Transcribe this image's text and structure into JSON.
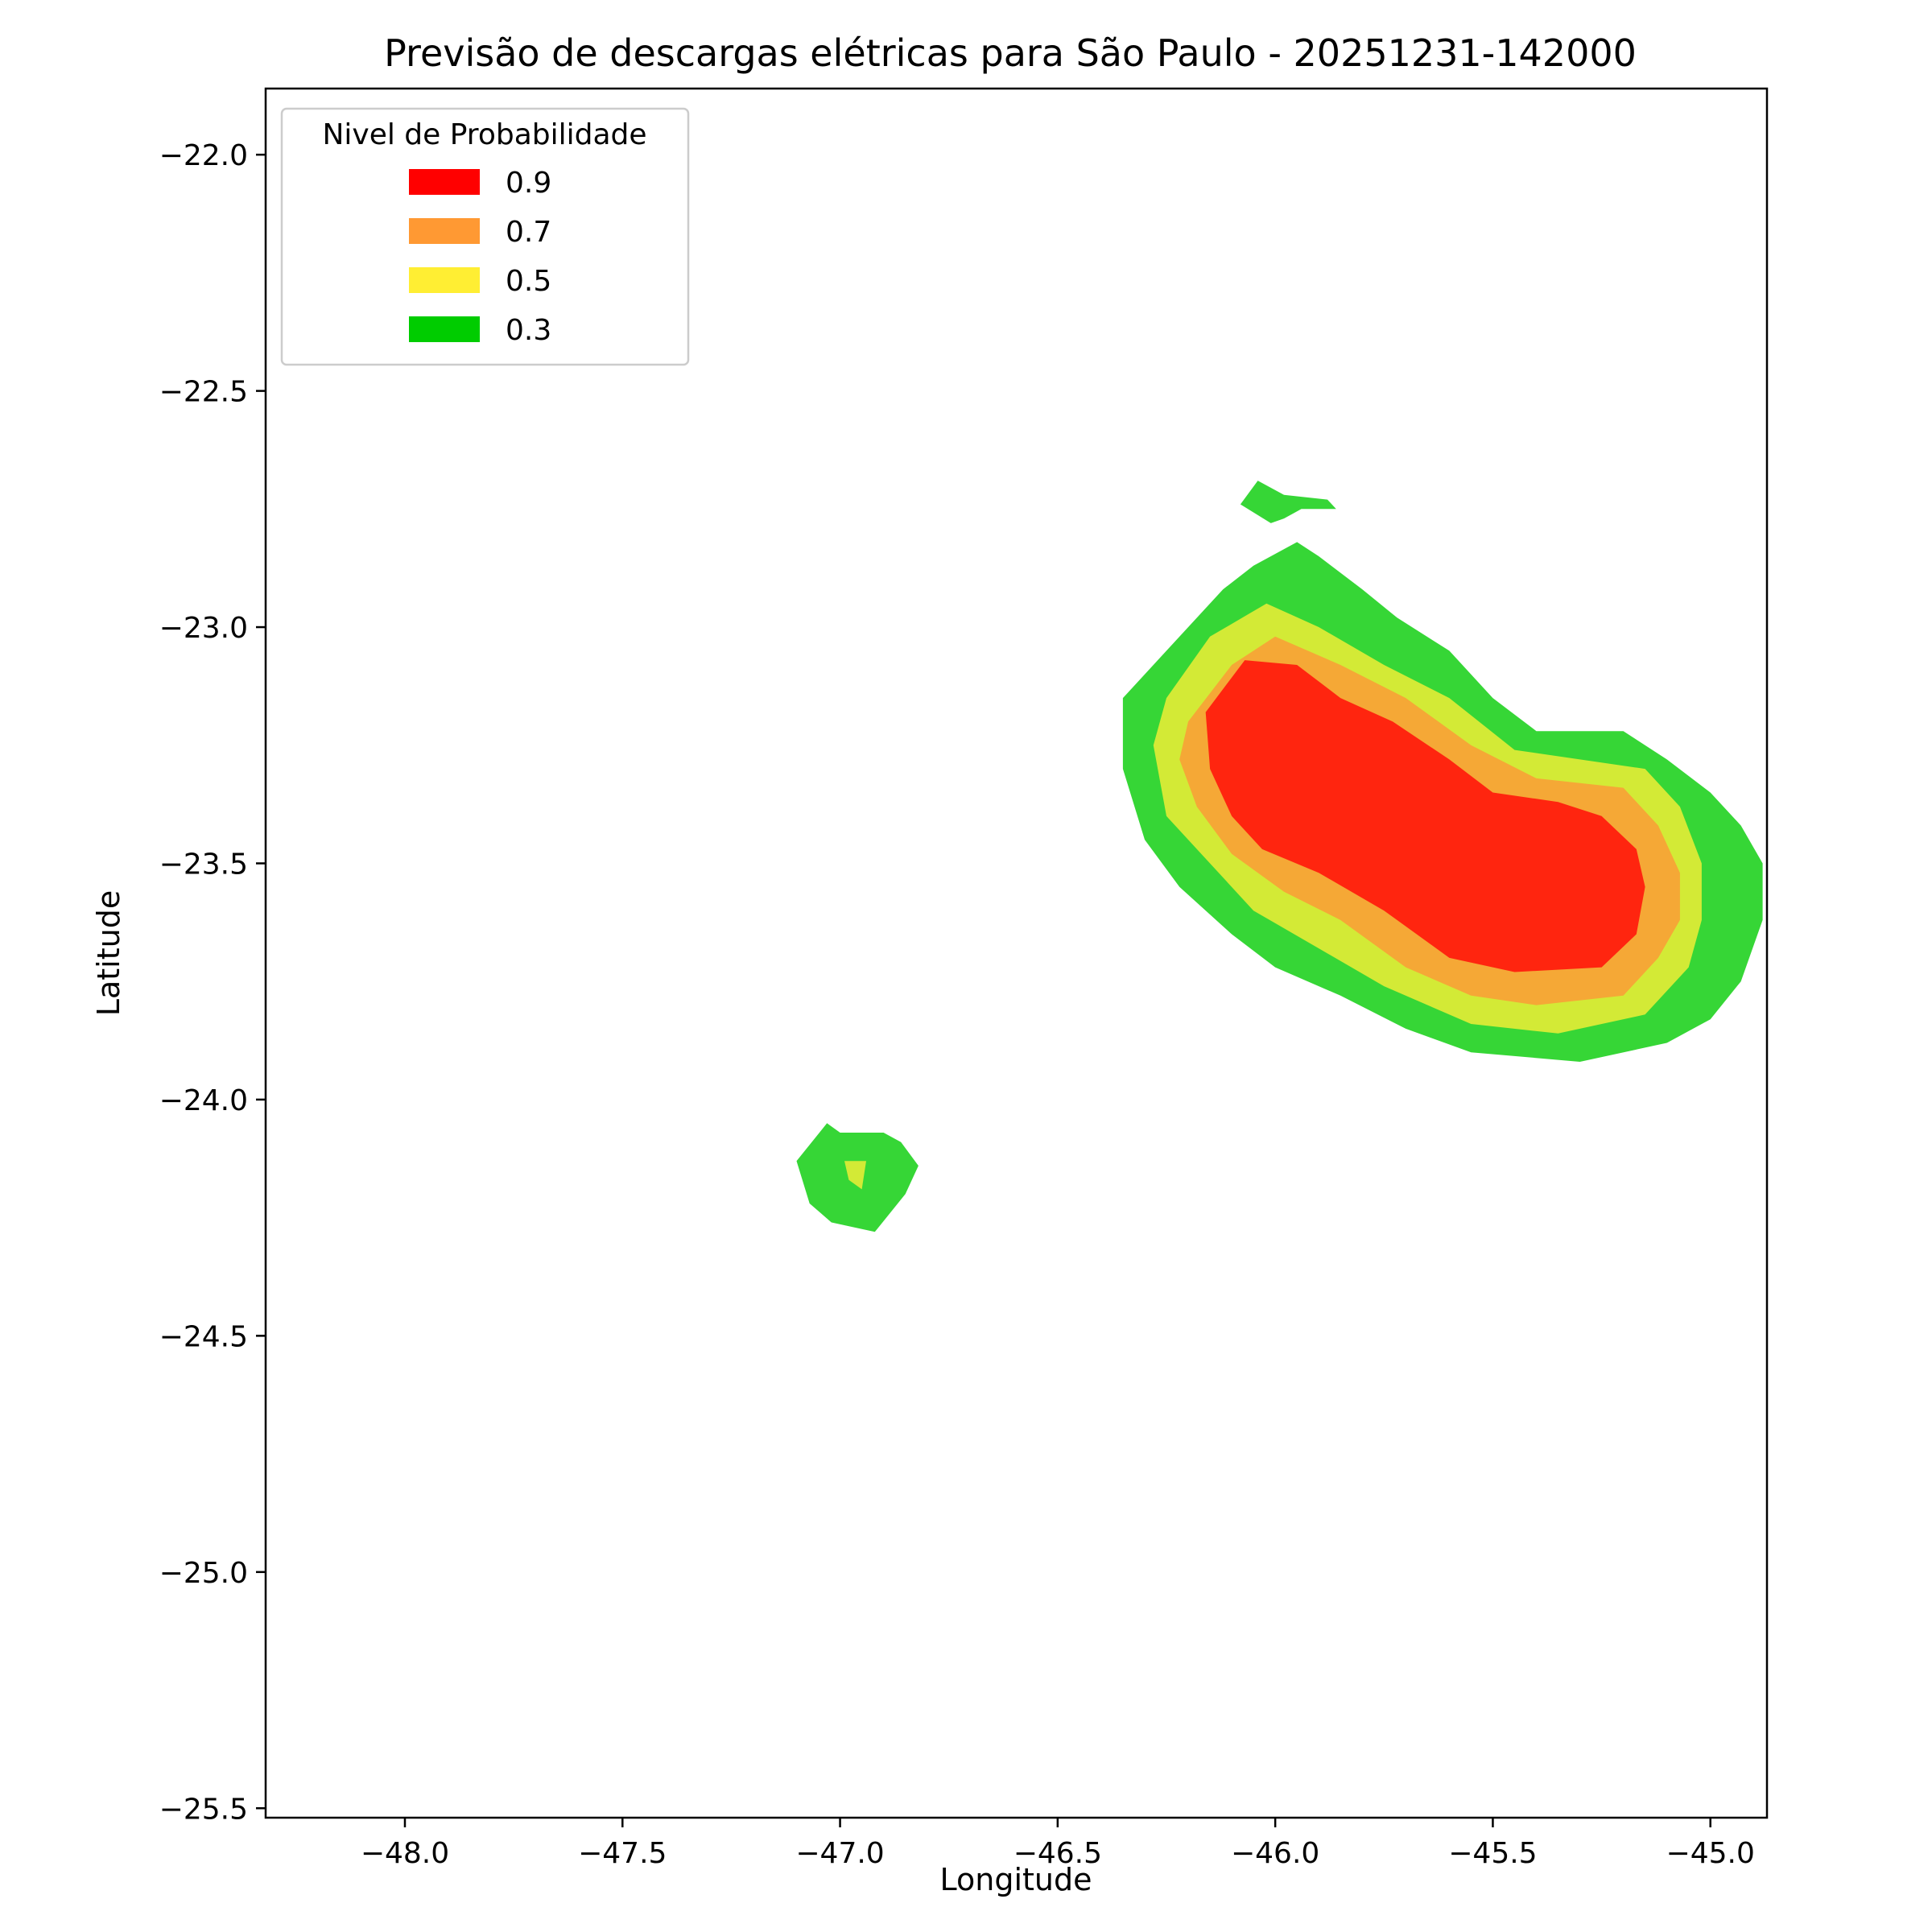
{
  "chart_data": {
    "type": "contour-map",
    "title": "Previsão de descargas elétricas para São Paulo - 20251231-142000",
    "xlabel": "Longitude",
    "ylabel": "Latitude",
    "xlim": [
      -48.32,
      -44.87
    ],
    "ylim": [
      -25.52,
      -21.86
    ],
    "xticks": [
      -48.0,
      -47.5,
      -47.0,
      -46.5,
      -46.0,
      -45.5,
      -45.0
    ],
    "xtick_labels": [
      "−48.0",
      "−47.5",
      "−47.0",
      "−46.5",
      "−46.0",
      "−45.5",
      "−45.0"
    ],
    "yticks": [
      -22.0,
      -22.5,
      -23.0,
      -23.5,
      -24.0,
      -24.5,
      -25.0,
      -25.5
    ],
    "ytick_labels": [
      "−22.0",
      "−22.5",
      "−23.0",
      "−23.5",
      "−24.0",
      "−24.5",
      "−25.0",
      "−25.5"
    ],
    "legend": {
      "title": "Nivel de Probabilidade",
      "placement": "top-left",
      "entries": [
        {
          "label": "0.9",
          "color": "#ff0000"
        },
        {
          "label": "0.7",
          "color": "#ff9933"
        },
        {
          "label": "0.5",
          "color": "#ffee33"
        },
        {
          "label": "0.3",
          "color": "#00cc00"
        }
      ]
    },
    "fill_colors": {
      "0.3": "#36d636",
      "0.5": "#d3ea36",
      "0.7": "#f5a836",
      "0.9": "#ff250f"
    },
    "regions": [
      {
        "level": "0.3",
        "name": "main-cell",
        "polygon": [
          [
            -46.25,
            -23.05
          ],
          [
            -46.12,
            -22.92
          ],
          [
            -46.05,
            -22.87
          ],
          [
            -45.95,
            -22.82
          ],
          [
            -45.9,
            -22.85
          ],
          [
            -45.8,
            -22.92
          ],
          [
            -45.72,
            -22.98
          ],
          [
            -45.6,
            -23.05
          ],
          [
            -45.5,
            -23.15
          ],
          [
            -45.4,
            -23.22
          ],
          [
            -45.2,
            -23.22
          ],
          [
            -45.1,
            -23.28
          ],
          [
            -45.0,
            -23.35
          ],
          [
            -44.93,
            -23.42
          ],
          [
            -44.88,
            -23.5
          ],
          [
            -44.88,
            -23.62
          ],
          [
            -44.93,
            -23.75
          ],
          [
            -45.0,
            -23.83
          ],
          [
            -45.1,
            -23.88
          ],
          [
            -45.3,
            -23.92
          ],
          [
            -45.55,
            -23.9
          ],
          [
            -45.7,
            -23.85
          ],
          [
            -45.85,
            -23.78
          ],
          [
            -46.0,
            -23.72
          ],
          [
            -46.1,
            -23.65
          ],
          [
            -46.22,
            -23.55
          ],
          [
            -46.3,
            -23.45
          ],
          [
            -46.35,
            -23.3
          ],
          [
            -46.35,
            -23.15
          ]
        ]
      },
      {
        "level": "0.3",
        "name": "north-fragment",
        "polygon": [
          [
            -46.08,
            -22.74
          ],
          [
            -46.04,
            -22.69
          ],
          [
            -45.98,
            -22.72
          ],
          [
            -45.88,
            -22.73
          ],
          [
            -45.86,
            -22.75
          ],
          [
            -45.94,
            -22.75
          ],
          [
            -45.98,
            -22.77
          ],
          [
            -46.01,
            -22.78
          ]
        ]
      },
      {
        "level": "0.3",
        "name": "southwest-cell",
        "polygon": [
          [
            -47.03,
            -24.05
          ],
          [
            -47.1,
            -24.13
          ],
          [
            -47.07,
            -24.22
          ],
          [
            -47.02,
            -24.26
          ],
          [
            -46.92,
            -24.28
          ],
          [
            -46.85,
            -24.2
          ],
          [
            -46.82,
            -24.14
          ],
          [
            -46.86,
            -24.09
          ],
          [
            -46.9,
            -24.07
          ],
          [
            -47.0,
            -24.07
          ]
        ]
      },
      {
        "level": "0.5",
        "name": "main-cell",
        "polygon": [
          [
            -46.25,
            -23.15
          ],
          [
            -46.15,
            -23.02
          ],
          [
            -46.02,
            -22.95
          ],
          [
            -45.9,
            -23.0
          ],
          [
            -45.75,
            -23.08
          ],
          [
            -45.6,
            -23.15
          ],
          [
            -45.45,
            -23.26
          ],
          [
            -45.3,
            -23.28
          ],
          [
            -45.15,
            -23.3
          ],
          [
            -45.07,
            -23.38
          ],
          [
            -45.02,
            -23.5
          ],
          [
            -45.02,
            -23.62
          ],
          [
            -45.05,
            -23.72
          ],
          [
            -45.15,
            -23.82
          ],
          [
            -45.35,
            -23.86
          ],
          [
            -45.55,
            -23.84
          ],
          [
            -45.75,
            -23.76
          ],
          [
            -45.9,
            -23.68
          ],
          [
            -46.05,
            -23.6
          ],
          [
            -46.15,
            -23.5
          ],
          [
            -46.25,
            -23.4
          ],
          [
            -46.28,
            -23.25
          ]
        ]
      },
      {
        "level": "0.5",
        "name": "southwest-core",
        "polygon": [
          [
            -46.99,
            -24.13
          ],
          [
            -46.94,
            -24.13
          ],
          [
            -46.95,
            -24.19
          ],
          [
            -46.98,
            -24.17
          ]
        ]
      },
      {
        "level": "0.7",
        "name": "main-cell",
        "polygon": [
          [
            -46.2,
            -23.2
          ],
          [
            -46.1,
            -23.08
          ],
          [
            -46.0,
            -23.02
          ],
          [
            -45.85,
            -23.08
          ],
          [
            -45.7,
            -23.15
          ],
          [
            -45.55,
            -23.25
          ],
          [
            -45.4,
            -23.32
          ],
          [
            -45.2,
            -23.34
          ],
          [
            -45.12,
            -23.42
          ],
          [
            -45.07,
            -23.52
          ],
          [
            -45.07,
            -23.62
          ],
          [
            -45.12,
            -23.7
          ],
          [
            -45.2,
            -23.78
          ],
          [
            -45.4,
            -23.8
          ],
          [
            -45.55,
            -23.78
          ],
          [
            -45.7,
            -23.72
          ],
          [
            -45.85,
            -23.62
          ],
          [
            -45.98,
            -23.56
          ],
          [
            -46.1,
            -23.48
          ],
          [
            -46.18,
            -23.38
          ],
          [
            -46.22,
            -23.28
          ]
        ]
      },
      {
        "level": "0.9",
        "name": "main-cell",
        "polygon": [
          [
            -46.16,
            -23.18
          ],
          [
            -46.07,
            -23.07
          ],
          [
            -45.95,
            -23.08
          ],
          [
            -45.85,
            -23.15
          ],
          [
            -45.73,
            -23.2
          ],
          [
            -45.6,
            -23.28
          ],
          [
            -45.5,
            -23.35
          ],
          [
            -45.35,
            -23.37
          ],
          [
            -45.25,
            -23.4
          ],
          [
            -45.17,
            -23.47
          ],
          [
            -45.15,
            -23.55
          ],
          [
            -45.17,
            -23.65
          ],
          [
            -45.25,
            -23.72
          ],
          [
            -45.45,
            -23.73
          ],
          [
            -45.6,
            -23.7
          ],
          [
            -45.75,
            -23.6
          ],
          [
            -45.9,
            -23.52
          ],
          [
            -46.03,
            -23.47
          ],
          [
            -46.1,
            -23.4
          ],
          [
            -46.15,
            -23.3
          ]
        ]
      }
    ]
  }
}
